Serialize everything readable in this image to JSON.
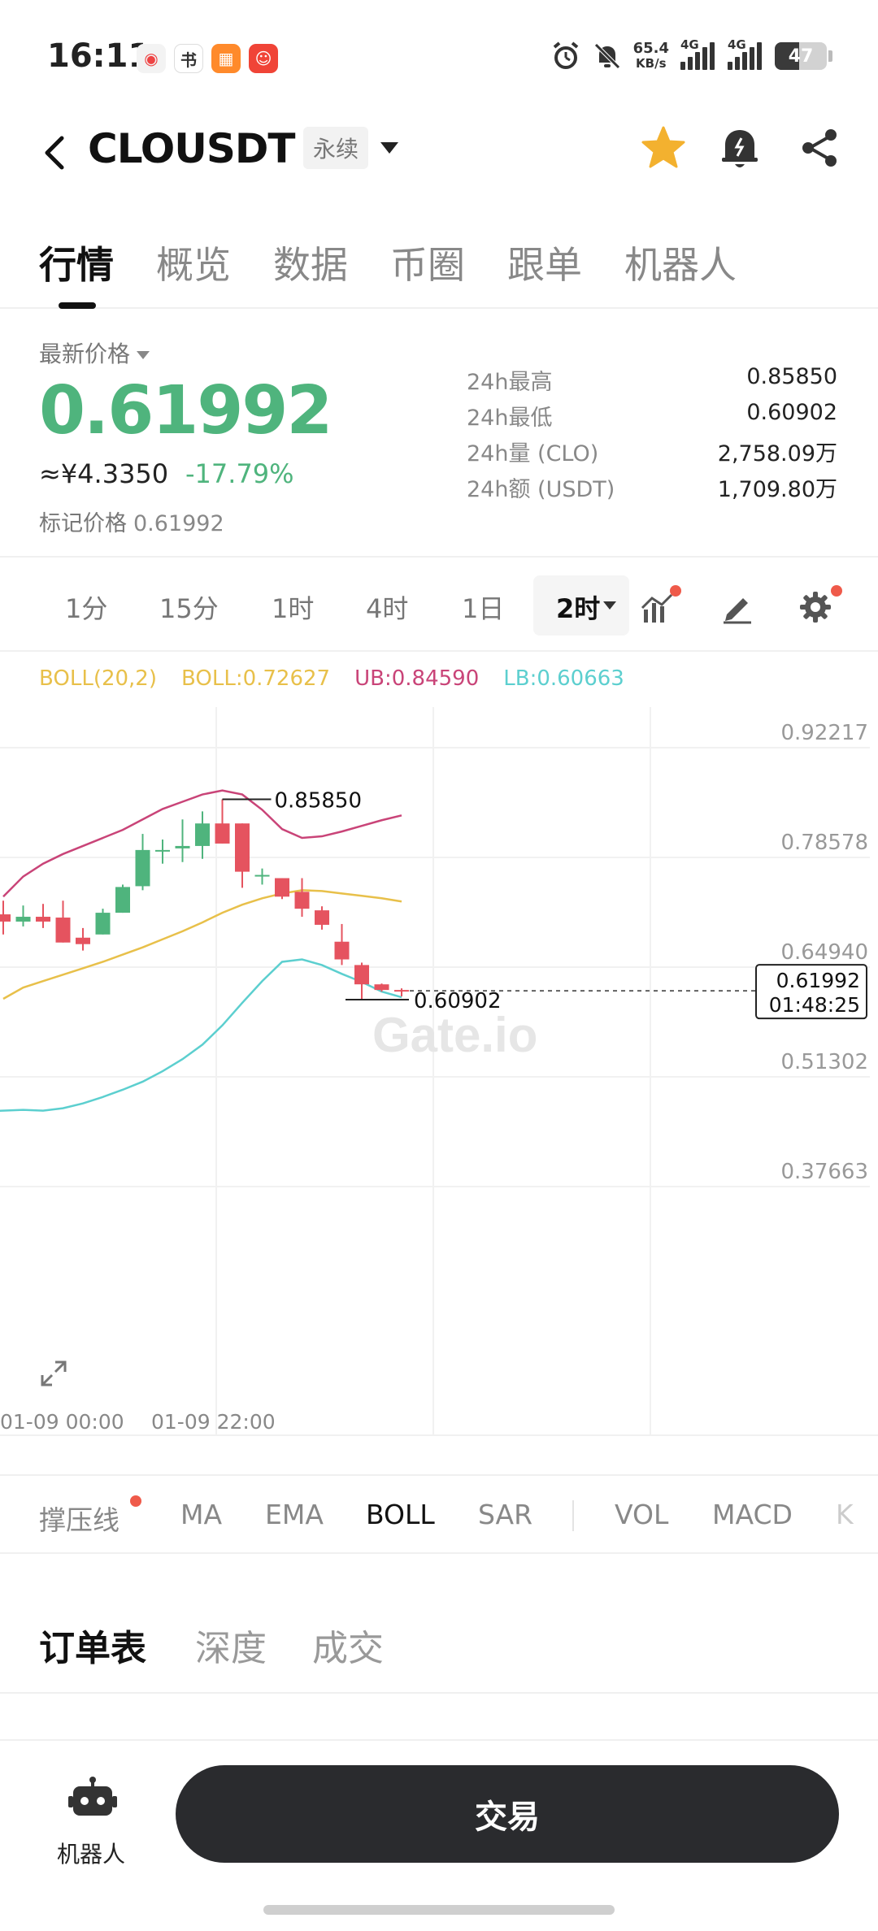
{
  "status_bar": {
    "time": "16:11",
    "net_speed_value": "65.4",
    "net_speed_unit": "KB/s",
    "signal1_label": "4G",
    "signal2_label": "4G",
    "battery": "47"
  },
  "header": {
    "pair": "CLOUSDT",
    "contract_type": "永续"
  },
  "tabs": [
    "行情",
    "概览",
    "数据",
    "币圈",
    "跟单",
    "机器人"
  ],
  "price": {
    "latest_label": "最新价格",
    "last": "0.61992",
    "cny": "≈¥4.3350",
    "change": "-17.79%",
    "mark_label": "标记价格",
    "mark_value": "0.61992"
  },
  "stats": [
    {
      "label": "24h最高",
      "value": "0.85850"
    },
    {
      "label": "24h最低",
      "value": "0.60902"
    },
    {
      "label": "24h量 (CLO)",
      "value": "2,758.09万"
    },
    {
      "label": "24h额 (USDT)",
      "value": "1,709.80万"
    }
  ],
  "timeframes": [
    "1分",
    "15分",
    "1时",
    "4时",
    "1日"
  ],
  "timeframe_selected": "2时",
  "boll_legend": {
    "params": "BOLL(20,2)",
    "mid": "BOLL:0.72627",
    "ub": "UB:0.84590",
    "lb": "LB:0.60663"
  },
  "chart_data": {
    "type": "candlestick",
    "y_ticks": [
      "0.92217",
      "0.78578",
      "0.64940",
      "0.51302",
      "0.37663"
    ],
    "x_ticks": [
      "01-09 00:00",
      "01-09 22:00"
    ],
    "ylim": [
      0.37663,
      0.92217
    ],
    "high_marker": "0.85850",
    "low_marker": "0.60902",
    "current_price": "0.61992",
    "countdown": "01:48:25",
    "watermark": "Gate.io",
    "candles": [
      {
        "o": 0.715,
        "h": 0.732,
        "l": 0.69,
        "c": 0.706
      },
      {
        "o": 0.706,
        "h": 0.726,
        "l": 0.7,
        "c": 0.712
      },
      {
        "o": 0.712,
        "h": 0.728,
        "l": 0.698,
        "c": 0.706
      },
      {
        "o": 0.711,
        "h": 0.732,
        "l": 0.68,
        "c": 0.68
      },
      {
        "o": 0.686,
        "h": 0.698,
        "l": 0.67,
        "c": 0.678
      },
      {
        "o": 0.69,
        "h": 0.722,
        "l": 0.69,
        "c": 0.717
      },
      {
        "o": 0.717,
        "h": 0.752,
        "l": 0.717,
        "c": 0.749
      },
      {
        "o": 0.75,
        "h": 0.815,
        "l": 0.745,
        "c": 0.795
      },
      {
        "o": 0.793,
        "h": 0.808,
        "l": 0.778,
        "c": 0.795
      },
      {
        "o": 0.797,
        "h": 0.833,
        "l": 0.78,
        "c": 0.8
      },
      {
        "o": 0.8,
        "h": 0.843,
        "l": 0.784,
        "c": 0.828
      },
      {
        "o": 0.828,
        "h": 0.858,
        "l": 0.803,
        "c": 0.803
      },
      {
        "o": 0.828,
        "h": 0.828,
        "l": 0.748,
        "c": 0.768
      },
      {
        "o": 0.764,
        "h": 0.772,
        "l": 0.752,
        "c": 0.764
      },
      {
        "o": 0.76,
        "h": 0.76,
        "l": 0.734,
        "c": 0.737
      },
      {
        "o": 0.743,
        "h": 0.76,
        "l": 0.712,
        "c": 0.722
      },
      {
        "o": 0.72,
        "h": 0.725,
        "l": 0.696,
        "c": 0.702
      },
      {
        "o": 0.681,
        "h": 0.703,
        "l": 0.652,
        "c": 0.659
      },
      {
        "o": 0.652,
        "h": 0.655,
        "l": 0.609,
        "c": 0.628
      },
      {
        "o": 0.628,
        "h": 0.629,
        "l": 0.619,
        "c": 0.621
      },
      {
        "o": 0.621,
        "h": 0.623,
        "l": 0.613,
        "c": 0.62
      }
    ],
    "boll_upper": [
      0.737,
      0.762,
      0.778,
      0.79,
      0.8,
      0.81,
      0.82,
      0.833,
      0.846,
      0.855,
      0.864,
      0.869,
      0.864,
      0.845,
      0.821,
      0.81,
      0.812,
      0.818,
      0.825,
      0.832,
      0.838
    ],
    "boll_mid": [
      0.61,
      0.624,
      0.632,
      0.64,
      0.648,
      0.656,
      0.665,
      0.674,
      0.684,
      0.694,
      0.705,
      0.717,
      0.727,
      0.735,
      0.741,
      0.745,
      0.744,
      0.741,
      0.738,
      0.735,
      0.731
    ],
    "boll_lower": [
      0.472,
      0.471,
      0.474,
      0.48,
      0.488,
      0.497,
      0.507,
      0.52,
      0.535,
      0.553,
      0.577,
      0.605,
      0.632,
      0.656,
      0.659,
      0.652,
      0.641,
      0.631,
      0.619,
      0.612
    ],
    "boll_lower_start_index": 1,
    "colors": {
      "up": "#4fb47d",
      "down": "#e5535f",
      "upper": "#c94478",
      "mid": "#e8c04a",
      "lower": "#5ccfcf"
    }
  },
  "indicators": [
    "撑压线",
    "MA",
    "EMA",
    "BOLL",
    "SAR",
    "VOL",
    "MACD",
    "K"
  ],
  "indicator_active": "BOLL",
  "orderbook_tabs": [
    "订单表",
    "深度",
    "成交"
  ],
  "bottom": {
    "robot_label": "机器人",
    "trade_label": "交易"
  }
}
